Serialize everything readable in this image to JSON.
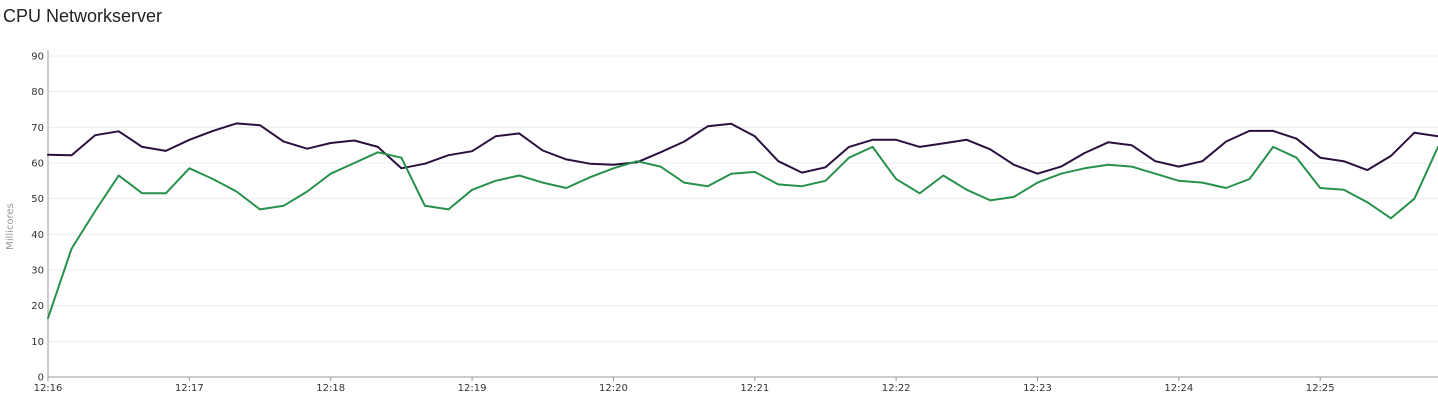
{
  "chart_data": {
    "type": "line",
    "title": "CPU Networkserver",
    "xlabel": "",
    "ylabel": "Millicores",
    "xlim": [
      "12:16:00",
      "12:25:50"
    ],
    "ylim": [
      0,
      90
    ],
    "y_ticks": [
      0,
      10,
      20,
      30,
      40,
      50,
      60,
      70,
      80,
      90
    ],
    "x_ticks": [
      "12:16",
      "12:17",
      "12:18",
      "12:19",
      "12:20",
      "12:21",
      "12:22",
      "12:23",
      "12:24",
      "12:25"
    ],
    "grid": true,
    "legend": "none",
    "x": [
      "12:16:00",
      "12:16:10",
      "12:16:20",
      "12:16:30",
      "12:16:40",
      "12:16:50",
      "12:17:00",
      "12:17:10",
      "12:17:20",
      "12:17:30",
      "12:17:40",
      "12:17:50",
      "12:18:00",
      "12:18:10",
      "12:18:20",
      "12:18:30",
      "12:18:40",
      "12:18:50",
      "12:19:00",
      "12:19:10",
      "12:19:20",
      "12:19:30",
      "12:19:40",
      "12:19:50",
      "12:20:00",
      "12:20:10",
      "12:20:20",
      "12:20:30",
      "12:20:40",
      "12:20:50",
      "12:21:00",
      "12:21:10",
      "12:21:20",
      "12:21:30",
      "12:21:40",
      "12:21:50",
      "12:22:00",
      "12:22:10",
      "12:22:20",
      "12:22:30",
      "12:22:40",
      "12:22:50",
      "12:23:00",
      "12:23:10",
      "12:23:20",
      "12:23:30",
      "12:23:40",
      "12:23:50",
      "12:24:00",
      "12:24:10",
      "12:24:20",
      "12:24:30",
      "12:24:40",
      "12:24:50",
      "12:25:00",
      "12:25:10",
      "12:25:20",
      "12:25:30",
      "12:25:40",
      "12:25:50"
    ],
    "series": [
      {
        "color": "#2b0f3f",
        "values": [
          62.3,
          62.2,
          67.8,
          68.9,
          64.5,
          63.4,
          66.5,
          69.0,
          71.1,
          70.6,
          66.0,
          64.0,
          65.6,
          66.3,
          64.5,
          58.5,
          59.8,
          62.2,
          63.3,
          67.5,
          68.3,
          63.5,
          61.0,
          59.8,
          59.5,
          60.2,
          63.0,
          66.0,
          70.3,
          71.0,
          67.5,
          60.5,
          57.3,
          58.8,
          64.5,
          66.5,
          66.5,
          64.5,
          65.5,
          66.5,
          63.8,
          59.5,
          57.0,
          59.0,
          62.8,
          65.8,
          65.0,
          60.5,
          59.0,
          60.5,
          66.0,
          69.0,
          69.0,
          66.8,
          61.5,
          60.5,
          58.0,
          62.0,
          68.5,
          67.5
        ]
      },
      {
        "color": "#27914b",
        "values": [
          16.5,
          36.0,
          46.5,
          56.5,
          51.5,
          51.5,
          58.5,
          55.5,
          52.0,
          47.0,
          48.0,
          52.0,
          57.0,
          60.0,
          63.0,
          61.5,
          48.0,
          47.0,
          52.5,
          55.0,
          56.5,
          54.5,
          53.0,
          56.0,
          58.5,
          60.5,
          59.0,
          54.5,
          53.5,
          57.0,
          57.5,
          54.0,
          53.5,
          55.0,
          61.5,
          64.5,
          55.5,
          51.5,
          56.5,
          52.5,
          49.5,
          50.5,
          54.5,
          57.0,
          58.5,
          59.5,
          59.0,
          57.0,
          55.0,
          54.5,
          53.0,
          55.5,
          64.5,
          61.5,
          53.0,
          52.5,
          49.0,
          44.5,
          50.0,
          64.5
        ]
      }
    ]
  }
}
